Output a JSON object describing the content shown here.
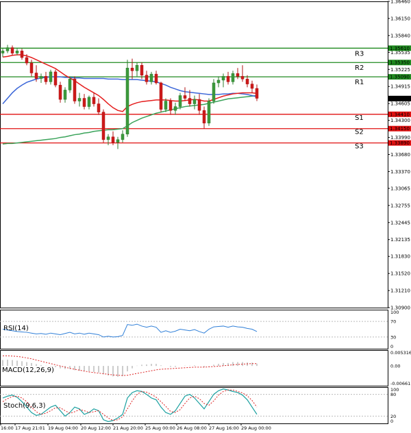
{
  "chart_data": {
    "type": "candlestick",
    "price_axis": {
      "ticks": [
        "1.36460",
        "1.36150",
        "1.35840",
        "1.35535",
        "1.35225",
        "1.34915",
        "1.34605",
        "1.34300",
        "1.33990",
        "1.33680",
        "1.33370",
        "1.33065",
        "1.32755",
        "1.32445",
        "1.32135",
        "1.31830",
        "1.31520",
        "1.31210",
        "1.30900"
      ],
      "ylim": [
        1.309,
        1.3646
      ]
    },
    "current_price": "1.34696",
    "levels": [
      {
        "name": "R3",
        "value": 1.3561,
        "label": "1.35610",
        "color": "#1f8a1f"
      },
      {
        "name": "R2",
        "value": 1.3535,
        "label": "1.35350",
        "color": "#1f8a1f"
      },
      {
        "name": "R1",
        "value": 1.3509,
        "label": "1.35090",
        "color": "#1f8a1f"
      },
      {
        "name": "S1",
        "value": 1.3441,
        "label": "1.34410",
        "color": "#e01010"
      },
      {
        "name": "S2",
        "value": 1.3415,
        "label": "1.34150",
        "color": "#e01010"
      },
      {
        "name": "S3",
        "value": 1.3389,
        "label": "1.33890",
        "color": "#e01010"
      }
    ],
    "time_labels": [
      "16:00",
      "17 Aug 21:01",
      "19 Aug 04:00",
      "20 Aug 12:00",
      "21 Aug 20:00",
      "25 Aug 00:00",
      "26 Aug 08:00",
      "27 Aug 16:00",
      "29 Aug 00:00"
    ],
    "candles": [
      [
        1.3552,
        1.356,
        1.3545,
        1.3556
      ],
      [
        1.3556,
        1.3567,
        1.3552,
        1.3562
      ],
      [
        1.3562,
        1.3566,
        1.3548,
        1.3552
      ],
      [
        1.3552,
        1.356,
        1.3548,
        1.3556
      ],
      [
        1.3556,
        1.356,
        1.354,
        1.3544
      ],
      [
        1.3544,
        1.355,
        1.353,
        1.3534
      ],
      [
        1.3534,
        1.354,
        1.351,
        1.3516
      ],
      [
        1.3516,
        1.353,
        1.35,
        1.3506
      ],
      [
        1.3506,
        1.3515,
        1.3498,
        1.351
      ],
      [
        1.351,
        1.3518,
        1.3495,
        1.35
      ],
      [
        1.35,
        1.3522,
        1.3495,
        1.3518
      ],
      [
        1.3518,
        1.3522,
        1.349,
        1.3494
      ],
      [
        1.3494,
        1.35,
        1.3462,
        1.3468
      ],
      [
        1.3468,
        1.349,
        1.3462,
        1.3485
      ],
      [
        1.3485,
        1.351,
        1.348,
        1.3505
      ],
      [
        1.3505,
        1.351,
        1.346,
        1.3465
      ],
      [
        1.3465,
        1.348,
        1.3455,
        1.347
      ],
      [
        1.347,
        1.3478,
        1.345,
        1.3455
      ],
      [
        1.3455,
        1.3475,
        1.345,
        1.3472
      ],
      [
        1.3472,
        1.348,
        1.3455,
        1.346
      ],
      [
        1.346,
        1.347,
        1.344,
        1.3445
      ],
      [
        1.3445,
        1.345,
        1.339,
        1.3395
      ],
      [
        1.3395,
        1.3405,
        1.3385,
        1.34
      ],
      [
        1.34,
        1.341,
        1.3385,
        1.339
      ],
      [
        1.339,
        1.34,
        1.3378,
        1.3395
      ],
      [
        1.3395,
        1.3412,
        1.339,
        1.3405
      ],
      [
        1.3405,
        1.354,
        1.34,
        1.3525
      ],
      [
        1.3525,
        1.3542,
        1.3505,
        1.352
      ],
      [
        1.352,
        1.3535,
        1.351,
        1.353
      ],
      [
        1.353,
        1.3535,
        1.3505,
        1.3512
      ],
      [
        1.3512,
        1.352,
        1.3495,
        1.35
      ],
      [
        1.35,
        1.3518,
        1.3495,
        1.3514
      ],
      [
        1.3514,
        1.352,
        1.3495,
        1.3498
      ],
      [
        1.3498,
        1.35,
        1.3445,
        1.345
      ],
      [
        1.345,
        1.347,
        1.3445,
        1.3465
      ],
      [
        1.3465,
        1.347,
        1.344,
        1.3448
      ],
      [
        1.3448,
        1.3462,
        1.344,
        1.3455
      ],
      [
        1.3455,
        1.348,
        1.345,
        1.3475
      ],
      [
        1.3475,
        1.349,
        1.3465,
        1.347
      ],
      [
        1.347,
        1.3485,
        1.3455,
        1.346
      ],
      [
        1.346,
        1.3475,
        1.345,
        1.3468
      ],
      [
        1.3468,
        1.3478,
        1.344,
        1.3448
      ],
      [
        1.3448,
        1.3455,
        1.3415,
        1.3425
      ],
      [
        1.3425,
        1.347,
        1.342,
        1.3465
      ],
      [
        1.3465,
        1.3505,
        1.346,
        1.3498
      ],
      [
        1.3498,
        1.351,
        1.349,
        1.3503
      ],
      [
        1.3503,
        1.3515,
        1.349,
        1.351
      ],
      [
        1.351,
        1.3518,
        1.3495,
        1.35
      ],
      [
        1.35,
        1.352,
        1.3495,
        1.3515
      ],
      [
        1.3515,
        1.3525,
        1.3505,
        1.351
      ],
      [
        1.351,
        1.353,
        1.35,
        1.3505
      ],
      [
        1.3505,
        1.3512,
        1.349,
        1.3496
      ],
      [
        1.3496,
        1.3502,
        1.348,
        1.3488
      ],
      [
        1.3488,
        1.3495,
        1.3465,
        1.347
      ]
    ],
    "ma_red": [
      1.3545,
      1.3546,
      1.3548,
      1.3549,
      1.3549,
      1.3547,
      1.3544,
      1.354,
      1.3536,
      1.3532,
      1.3528,
      1.3524,
      1.3518,
      1.3512,
      1.3507,
      1.3502,
      1.3496,
      1.349,
      1.3485,
      1.348,
      1.3475,
      1.3468,
      1.346,
      1.3453,
      1.3448,
      1.3446,
      1.3455,
      1.3459,
      1.3462,
      1.3464,
      1.3465,
      1.3466,
      1.3467,
      1.3467,
      1.3467,
      1.3466,
      1.3465,
      1.3465,
      1.3466,
      1.3467,
      1.3468,
      1.3467,
      1.3465,
      1.3465,
      1.3468,
      1.3471,
      1.3474,
      1.3476,
      1.3478,
      1.3479,
      1.348,
      1.348,
      1.348,
      1.3479
    ],
    "ma_blue": [
      1.346,
      1.347,
      1.348,
      1.3488,
      1.3494,
      1.3499,
      1.3502,
      1.3505,
      1.3507,
      1.3508,
      1.3509,
      1.3509,
      1.3509,
      1.3508,
      1.3508,
      1.3507,
      1.3507,
      1.3506,
      1.3506,
      1.3506,
      1.3506,
      1.3506,
      1.3505,
      1.3505,
      1.3505,
      1.3504,
      1.3504,
      1.3504,
      1.3504,
      1.3503,
      1.3502,
      1.3501,
      1.35,
      1.3497,
      1.3494,
      1.349,
      1.3487,
      1.3484,
      1.3482,
      1.3481,
      1.348,
      1.3479,
      1.3478,
      1.3477,
      1.3477,
      1.3477,
      1.3478,
      1.3478,
      1.3479,
      1.3479,
      1.3478,
      1.3477,
      1.3475,
      1.3473
    ],
    "ma_green": [
      1.3387,
      1.3388,
      1.3388,
      1.3389,
      1.339,
      1.3391,
      1.3392,
      1.3393,
      1.3394,
      1.3395,
      1.3396,
      1.3397,
      1.3399,
      1.34,
      1.3402,
      1.3404,
      1.3405,
      1.3407,
      1.3408,
      1.341,
      1.3411,
      1.3412,
      1.3413,
      1.3413,
      1.3414,
      1.3415,
      1.342,
      1.3426,
      1.343,
      1.3434,
      1.3437,
      1.344,
      1.3443,
      1.3445,
      1.3447,
      1.3449,
      1.3451,
      1.3453,
      1.3455,
      1.3456,
      1.3457,
      1.3458,
      1.3459,
      1.3461,
      1.3463,
      1.3465,
      1.3467,
      1.3469,
      1.347,
      1.3471,
      1.3472,
      1.3473,
      1.3474,
      1.3475
    ],
    "indicators": [
      {
        "name": "RSI(14)",
        "ticks": [
          "100",
          "70",
          "30",
          "0"
        ],
        "values": [
          50,
          48,
          46,
          44,
          43,
          42,
          40,
          38,
          39,
          37,
          40,
          38,
          36,
          39,
          42,
          38,
          40,
          37,
          40,
          38,
          36,
          30,
          32,
          30,
          31,
          34,
          62,
          60,
          63,
          58,
          55,
          58,
          55,
          42,
          46,
          42,
          45,
          50,
          48,
          46,
          49,
          44,
          40,
          50,
          56,
          57,
          58,
          55,
          58,
          56,
          55,
          52,
          50,
          44
        ]
      },
      {
        "name": "MACD(12,26,9)",
        "ticks": [
          "0.005316",
          "0.00",
          "-0.006611"
        ],
        "hist": [
          0.002,
          0.0021,
          0.002,
          0.0018,
          0.0016,
          0.0013,
          0.001,
          0.0006,
          0.0003,
          0.0001,
          -0.0001,
          -0.0004,
          -0.0008,
          -0.001,
          -0.001,
          -0.0014,
          -0.0016,
          -0.0018,
          -0.0018,
          -0.002,
          -0.0022,
          -0.0028,
          -0.0032,
          -0.0035,
          -0.0036,
          -0.0034,
          -0.0018,
          -0.0008,
          0.0001,
          0.0004,
          0.0005,
          0.0007,
          0.0007,
          0.0002,
          0.0,
          -0.0003,
          -0.0003,
          0.0,
          0.0001,
          0.0001,
          0.0002,
          0.0,
          -0.0004,
          -0.0001,
          0.0004,
          0.0007,
          0.001,
          0.001,
          0.0013,
          0.0013,
          0.0013,
          0.0012,
          0.0011,
          0.0008
        ],
        "signal": [
          0.0034,
          0.0034,
          0.0033,
          0.0032,
          0.003,
          0.0027,
          0.0024,
          0.002,
          0.0016,
          0.0012,
          0.0008,
          0.0004,
          0.0,
          -0.0004,
          -0.0008,
          -0.0011,
          -0.0014,
          -0.0017,
          -0.002,
          -0.0022,
          -0.0024,
          -0.0026,
          -0.0028,
          -0.003,
          -0.0031,
          -0.0032,
          -0.0031,
          -0.0028,
          -0.0025,
          -0.0022,
          -0.0019,
          -0.0016,
          -0.0013,
          -0.0011,
          -0.001,
          -0.0009,
          -0.0008,
          -0.0007,
          -0.0006,
          -0.0005,
          -0.0004,
          -0.0004,
          -0.0004,
          -0.0003,
          -0.0002,
          -0.0001,
          0.0001,
          0.0002,
          0.0004,
          0.0005,
          0.0006,
          0.0007,
          0.0008,
          0.0008
        ]
      },
      {
        "name": "Stoch(9,6,3)",
        "ticks": [
          "100",
          "80",
          "20",
          "0"
        ],
        "k": [
          70,
          75,
          78,
          72,
          60,
          45,
          30,
          22,
          25,
          35,
          45,
          50,
          35,
          20,
          30,
          45,
          40,
          25,
          30,
          40,
          35,
          10,
          5,
          8,
          15,
          25,
          70,
          85,
          90,
          88,
          80,
          70,
          65,
          45,
          30,
          25,
          35,
          55,
          75,
          80,
          70,
          55,
          40,
          60,
          80,
          90,
          95,
          92,
          88,
          85,
          78,
          65,
          45,
          25
        ],
        "d": [
          60,
          68,
          74,
          75,
          70,
          60,
          45,
          32,
          25,
          28,
          35,
          43,
          43,
          35,
          28,
          32,
          38,
          35,
          30,
          32,
          35,
          25,
          15,
          8,
          10,
          18,
          40,
          62,
          80,
          88,
          86,
          80,
          72,
          60,
          47,
          33,
          30,
          38,
          55,
          70,
          75,
          68,
          55,
          50,
          62,
          78,
          88,
          92,
          92,
          88,
          84,
          76,
          63,
          45
        ]
      }
    ]
  }
}
